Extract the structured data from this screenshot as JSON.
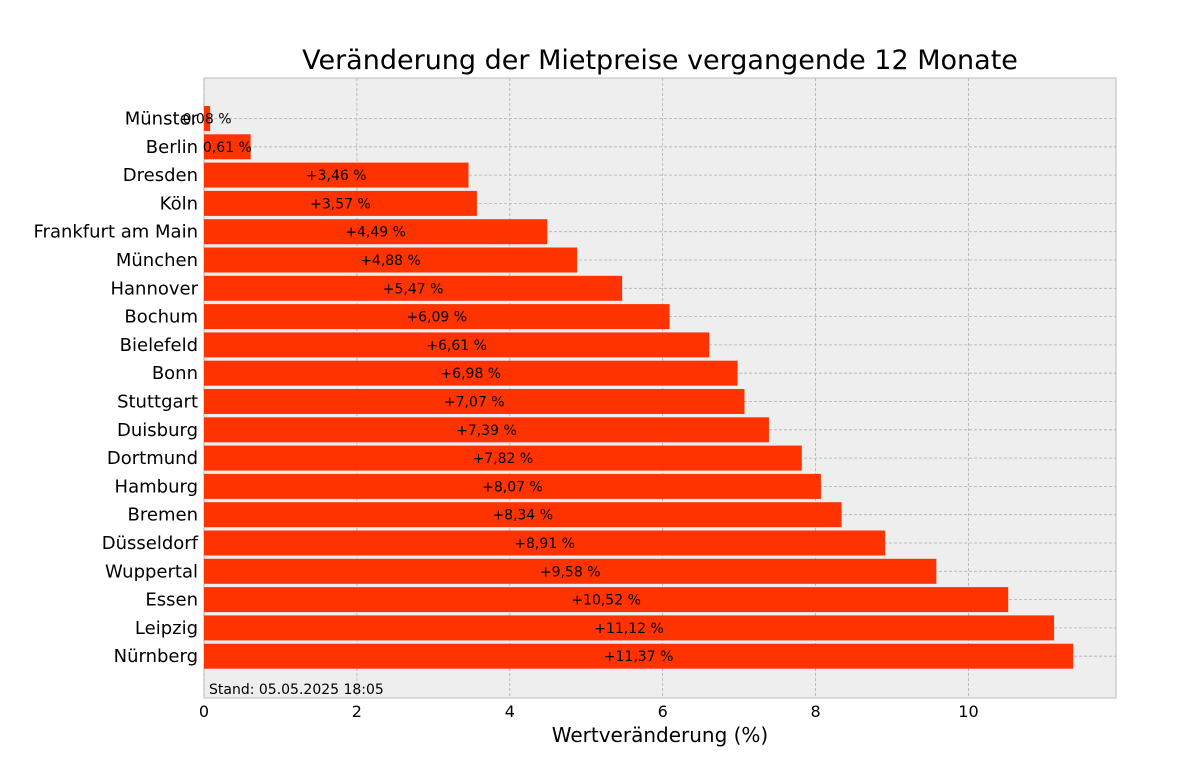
{
  "chart_data": {
    "type": "bar",
    "orientation": "horizontal",
    "title": "Veränderung der Mietpreise vergangende 12 Monate",
    "xlabel": "Wertveränderung (%)",
    "ylabel": "",
    "xlim": [
      0,
      11.93
    ],
    "xticks": [
      0,
      2,
      4,
      6,
      8,
      10
    ],
    "grid": true,
    "bar_color": "#ff3300",
    "background_color": "#eeeeee",
    "annotation": "Stand: 05.05.2025 18:05",
    "categories": [
      "Münster",
      "Berlin",
      "Dresden",
      "Köln",
      "Frankfurt am Main",
      "München",
      "Hannover",
      "Bochum",
      "Bielefeld",
      "Bonn",
      "Stuttgart",
      "Duisburg",
      "Dortmund",
      "Hamburg",
      "Bremen",
      "Düsseldorf",
      "Wuppertal",
      "Essen",
      "Leipzig",
      "Nürnberg"
    ],
    "values": [
      0.08,
      0.61,
      3.46,
      3.57,
      4.49,
      4.88,
      5.47,
      6.09,
      6.61,
      6.98,
      7.07,
      7.39,
      7.82,
      8.07,
      8.34,
      8.91,
      9.58,
      10.52,
      11.12,
      11.37
    ],
    "data_labels": [
      "0,08 %",
      "0,61 %",
      "+3,46 %",
      "+3,57 %",
      "+4,49 %",
      "+4,88 %",
      "+5,47 %",
      "+6,09 %",
      "+6,61 %",
      "+6,98 %",
      "+7,07 %",
      "+7,39 %",
      "+7,82 %",
      "+8,07 %",
      "+8,34 %",
      "+8,91 %",
      "+9,58 %",
      "+10,52 %",
      "+11,12 %",
      "+11,37 %"
    ]
  }
}
